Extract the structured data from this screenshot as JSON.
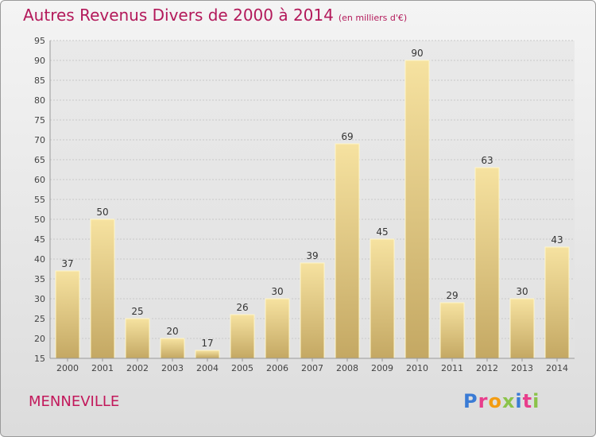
{
  "header": {
    "title": "Autres Revenus Divers de 2000 à 2014",
    "unit": "(en milliers d'€)"
  },
  "footer": {
    "commune": "MENNEVILLE",
    "logo_letters": [
      "P",
      "r",
      "o",
      "x",
      "i",
      "t",
      "i"
    ]
  },
  "colors": {
    "title": "#b3195a",
    "bar_light": "#f6e2a0",
    "bar_dark": "#c4a863",
    "logo": [
      "#3a7bd5",
      "#e83e8c",
      "#f39c12",
      "#8bc34a",
      "#3a7bd5",
      "#e83e8c",
      "#8bc34a"
    ]
  },
  "chart_data": {
    "type": "bar",
    "title": "Autres Revenus Divers de 2000 à 2014",
    "categories": [
      "2000",
      "2001",
      "2002",
      "2003",
      "2004",
      "2005",
      "2006",
      "2007",
      "2008",
      "2009",
      "2010",
      "2011",
      "2012",
      "2013",
      "2014"
    ],
    "values": [
      37,
      50,
      25,
      20,
      17,
      26,
      30,
      39,
      69,
      45,
      90,
      29,
      63,
      30,
      43
    ],
    "ylim": [
      15,
      95
    ],
    "yticks": [
      15,
      20,
      25,
      30,
      35,
      40,
      45,
      50,
      55,
      60,
      65,
      70,
      75,
      80,
      85,
      90,
      95
    ],
    "grid": true,
    "legend": "none"
  }
}
